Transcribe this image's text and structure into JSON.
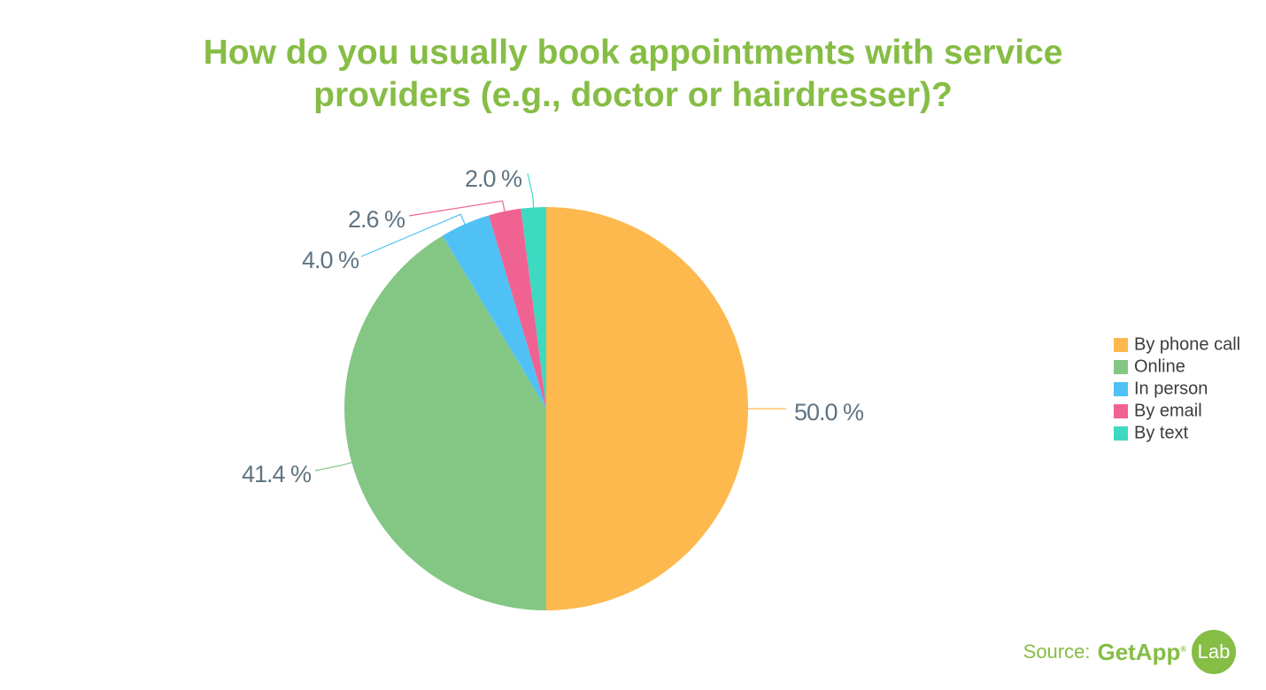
{
  "chart_data": {
    "type": "pie",
    "title": "How do you usually book appointments with service providers (e.g., doctor or hairdresser)?",
    "categories": [
      "By phone call",
      "Online",
      "In person",
      "By email",
      "By text"
    ],
    "values": [
      50.0,
      41.4,
      4.0,
      2.6,
      2.0
    ],
    "value_labels": [
      "50.0 %",
      "41.4 %",
      "4.0 %",
      "2.6 %",
      "2.0 %"
    ],
    "colors": [
      "#fdb94e",
      "#84c785",
      "#4fc1f5",
      "#f06292",
      "#3dd9c1"
    ],
    "legend": "right",
    "source": {
      "prefix": "Source:",
      "brand": "GetApp",
      "mark": "®",
      "lab": "Lab"
    }
  }
}
